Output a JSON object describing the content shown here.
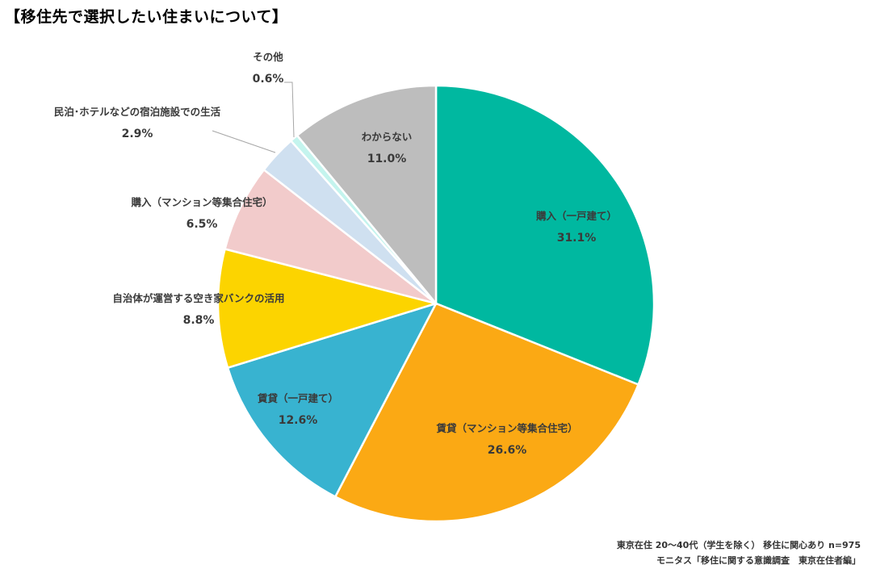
{
  "title": "【移住先で選択したい住まいについて】",
  "notes": [
    "東京在住 20〜40代（学生を除く） 移住に関心あり n=975",
    "モニタス「移住に関する意識調査　東京在住者編」"
  ],
  "chart_data": {
    "type": "pie",
    "title": "【移住先で選択したい住まいについて】",
    "start": "12 o'clock",
    "direction": "clockwise",
    "slices": [
      {
        "label": "購入（一戸建て）",
        "value": 31.1,
        "value_label": "31.1%",
        "color": "#00b8a0"
      },
      {
        "label": "賃貸（マンション等集合住宅）",
        "value": 26.6,
        "value_label": "26.6%",
        "color": "#fba914"
      },
      {
        "label": "賃貸（一戸建て）",
        "value": 12.6,
        "value_label": "12.6%",
        "color": "#38b3d0"
      },
      {
        "label": "自治体が運営する空き家バンクの活用",
        "value": 8.8,
        "value_label": "8.8%",
        "color": "#fcd400"
      },
      {
        "label": "購入（マンション等集合住宅）",
        "value": 6.5,
        "value_label": "6.5%",
        "color": "#f2cbcb"
      },
      {
        "label": "民泊･ホテルなどの宿泊施設での生活",
        "value": 2.9,
        "value_label": "2.9%",
        "color": "#cfe0f0"
      },
      {
        "label": "その他",
        "value": 0.6,
        "value_label": "0.6%",
        "color": "#c4f4ee"
      },
      {
        "label": "わからない",
        "value": 11.0,
        "value_label": "11.0%",
        "color": "#bdbdbd"
      }
    ]
  }
}
